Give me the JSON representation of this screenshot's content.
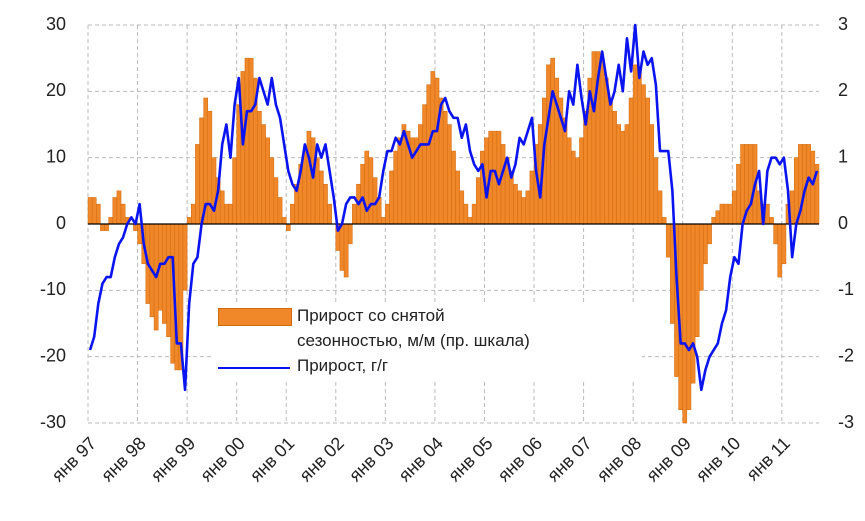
{
  "chart_data": {
    "type": "combo",
    "categories": [
      "янв 97",
      null,
      null,
      null,
      null,
      null,
      null,
      null,
      null,
      null,
      null,
      null,
      "янв 98",
      null,
      null,
      null,
      null,
      null,
      null,
      null,
      null,
      null,
      null,
      null,
      "янв 99",
      null,
      null,
      null,
      null,
      null,
      null,
      null,
      null,
      null,
      null,
      null,
      "янв 00",
      null,
      null,
      null,
      null,
      null,
      null,
      null,
      null,
      null,
      null,
      null,
      "янв 01",
      null,
      null,
      null,
      null,
      null,
      null,
      null,
      null,
      null,
      null,
      null,
      "янв 02",
      null,
      null,
      null,
      null,
      null,
      null,
      null,
      null,
      null,
      null,
      null,
      "янв 03",
      null,
      null,
      null,
      null,
      null,
      null,
      null,
      null,
      null,
      null,
      null,
      "янв 04",
      null,
      null,
      null,
      null,
      null,
      null,
      null,
      null,
      null,
      null,
      null,
      "янв 05",
      null,
      null,
      null,
      null,
      null,
      null,
      null,
      null,
      null,
      null,
      null,
      "янв 06",
      null,
      null,
      null,
      null,
      null,
      null,
      null,
      null,
      null,
      null,
      null,
      "янв 07",
      null,
      null,
      null,
      null,
      null,
      null,
      null,
      null,
      null,
      null,
      null,
      "янв 08",
      null,
      null,
      null,
      null,
      null,
      null,
      null,
      null,
      null,
      null,
      null,
      "янв 09",
      null,
      null,
      null,
      null,
      null,
      null,
      null,
      null,
      null,
      null,
      null,
      "янв 10",
      null,
      null,
      null,
      null,
      null,
      null,
      null,
      null,
      null,
      null,
      null,
      "янв 11",
      null,
      null,
      null,
      null,
      null,
      null,
      null,
      null
    ],
    "series": [
      {
        "name": "Прирост со снятой\nсезонностью, м/м (пр. шкала)",
        "type": "bar",
        "axis": "y2",
        "color": "#f0882a",
        "values": [
          0.4,
          0.4,
          0.3,
          -0.1,
          -0.1,
          0.1,
          0.4,
          0.5,
          0.3,
          0.1,
          0,
          -0.1,
          -0.3,
          -0.6,
          -1.2,
          -1.4,
          -1.6,
          -1.3,
          -1.5,
          -1.7,
          -2.1,
          -2.2,
          -2.2,
          -1.0,
          0.1,
          0.3,
          1.2,
          1.6,
          1.9,
          1.7,
          1.0,
          0.7,
          0.5,
          0.3,
          0.3,
          1.0,
          1.8,
          2.3,
          2.5,
          2.5,
          2.2,
          1.7,
          1.5,
          1.3,
          1.0,
          0.7,
          0.4,
          0.1,
          -0.1,
          0.3,
          0.6,
          0.9,
          1.1,
          1.4,
          1.3,
          1.0,
          0.8,
          0.6,
          0.3,
          0,
          -0.4,
          -0.7,
          -0.8,
          -0.3,
          0.3,
          0.6,
          0.9,
          1.1,
          1.0,
          0.7,
          0.4,
          0.1,
          0.3,
          0.8,
          1.1,
          1.3,
          1.5,
          1.4,
          1.3,
          1.3,
          1.5,
          1.8,
          2.1,
          2.3,
          2.2,
          1.9,
          1.7,
          1.5,
          1.1,
          0.8,
          0.5,
          0.3,
          0.1,
          0.3,
          0.7,
          1.1,
          1.3,
          1.4,
          1.4,
          1.4,
          1.2,
          1.0,
          0.8,
          0.6,
          0.5,
          0.4,
          0.5,
          0.8,
          1.2,
          1.5,
          1.9,
          2.4,
          2.5,
          2.2,
          1.9,
          1.6,
          1.3,
          1.1,
          1.0,
          1.3,
          1.7,
          2.2,
          2.6,
          2.6,
          2.5,
          2.2,
          1.9,
          1.7,
          1.5,
          1.4,
          1.5,
          1.9,
          2.4,
          2.3,
          2.1,
          1.9,
          1.5,
          1.0,
          0.5,
          0.1,
          -0.5,
          -1.5,
          -2.3,
          -2.8,
          -3.0,
          -2.8,
          -2.4,
          -1.7,
          -1.0,
          -0.6,
          -0.3,
          0.1,
          0.2,
          0.3,
          0.3,
          0.3,
          0.5,
          0.9,
          1.2,
          1.2,
          1.2,
          1.2,
          0.5,
          0.3,
          0.3,
          0.1,
          -0.3,
          -0.8,
          -0.6,
          0.3,
          0.5,
          1.0,
          1.2,
          1.2,
          1.2,
          1.1,
          0.9
        ]
      },
      {
        "name": "Прирост, г/г",
        "type": "line",
        "axis": "y",
        "color": "#0a14f0",
        "values": [
          -19,
          -17,
          -12,
          -9,
          -8,
          -8,
          -5,
          -3,
          -2,
          0,
          1,
          0,
          3,
          -3,
          -6,
          -7,
          -8,
          -6,
          -6,
          -5,
          -5,
          -18,
          -18,
          -25,
          -12,
          -6,
          -5,
          0,
          3,
          3,
          2,
          5,
          12,
          15,
          10,
          18,
          22,
          12,
          17,
          17,
          18,
          22,
          20,
          18,
          22,
          18,
          16,
          12,
          8,
          6,
          5,
          8,
          12,
          10,
          7,
          12,
          10,
          12,
          8,
          4,
          -1,
          0,
          3,
          4,
          4,
          3,
          4,
          2,
          3,
          3,
          4,
          8,
          11,
          11,
          13,
          12,
          14,
          12,
          10,
          11,
          12,
          12,
          12,
          14,
          14,
          18,
          19,
          17,
          16,
          16,
          13,
          15,
          11,
          9,
          8,
          9,
          4,
          8,
          8,
          6,
          8,
          10,
          7,
          9,
          13,
          12,
          14,
          16,
          8,
          4,
          12,
          16,
          20,
          18,
          16,
          14,
          20,
          18,
          24,
          19,
          15,
          20,
          17,
          22,
          26,
          22,
          18,
          20,
          24,
          20,
          28,
          23,
          30,
          22,
          26,
          24,
          25,
          21,
          11,
          11,
          11,
          5,
          -8,
          -18,
          -18,
          -19,
          -18,
          -20,
          -25,
          -22,
          -20,
          -19,
          -18,
          -15,
          -13,
          -8,
          -5,
          -6,
          0,
          2,
          3,
          6,
          8,
          0,
          8,
          10,
          10,
          9,
          10,
          5,
          -5,
          0,
          2,
          5,
          7,
          6,
          8
        ]
      }
    ],
    "ylim": [
      -30,
      30
    ],
    "yticks": [
      -30,
      -20,
      -10,
      0,
      10,
      20,
      30
    ],
    "y2lim": [
      -3,
      3
    ],
    "y2ticks": [
      -3,
      -2,
      -1,
      0,
      1,
      2,
      3
    ],
    "grid": true
  }
}
